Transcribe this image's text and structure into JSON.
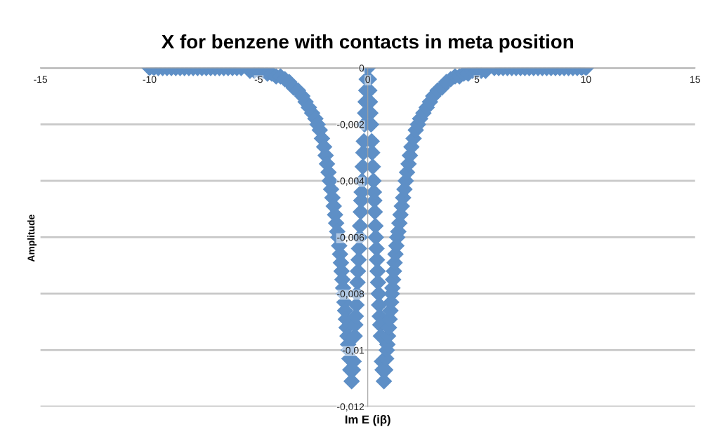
{
  "chart_data": {
    "type": "scatter",
    "title": "X for benzene with contacts in meta position",
    "xlabel": "Im E (iβ)",
    "ylabel": "Amplitude",
    "xlim": [
      -15,
      15
    ],
    "xticks": [
      -15,
      -10,
      -5,
      0,
      5,
      10,
      15
    ],
    "ylim": [
      -0.012,
      0
    ],
    "yticks": [
      {
        "value": -0.012,
        "label": "-0,012"
      },
      {
        "value": -0.01,
        "label": "-0,01"
      },
      {
        "value": -0.008,
        "label": "-0,008"
      },
      {
        "value": -0.006,
        "label": "-0,006"
      },
      {
        "value": -0.004,
        "label": "-0,004"
      },
      {
        "value": -0.002,
        "label": "-0,002"
      },
      0
    ],
    "grid": "y",
    "marker": "diamond",
    "series": [
      {
        "color": "#5e8fc6",
        "x": [
          -10,
          -9.8,
          -9.6,
          -9.4,
          -9.2,
          -9,
          -8.8,
          -8.6,
          -8.4,
          -8.2,
          -8,
          -7.8,
          -7.6,
          -7.4,
          -7.2,
          -7,
          -6.8,
          -6.6,
          -6.4,
          -6.2,
          -6,
          -5.8,
          -5.4,
          -5.2,
          -5,
          -4.8,
          -4.6,
          -4.4,
          -4.2,
          -4,
          -3.8,
          -3.6,
          -3.4,
          -3.2,
          -3,
          -2.85,
          -2.7,
          -2.55,
          -2.4,
          -2.3,
          -2.2,
          -2.1,
          -2,
          -1.93,
          -1.87,
          -1.8,
          -1.74,
          -1.68,
          -1.62,
          -1.56,
          -1.5,
          -1.45,
          -1.4,
          -1.35,
          -1.31,
          -1.27,
          -1.23,
          -1.2,
          -1.16,
          -1.13,
          -1.1,
          -1.07,
          -1.04,
          -1,
          -0.97,
          -0.93,
          -0.9,
          -0.87,
          -0.84,
          -0.8,
          -0.74,
          -0.68,
          -0.65,
          -0.6,
          -0.57,
          -0.55,
          -0.52,
          -0.5,
          -0.47,
          -0.45,
          -0.42,
          -0.4,
          -0.37,
          -0.35,
          -0.32,
          -0.3,
          -0.28,
          -0.26,
          -0.23,
          -0.2,
          -0.18,
          -0.15,
          -0.12,
          -0.1,
          -0.07,
          -0.05,
          0,
          0.05,
          0.07,
          0.1,
          0.12,
          0.15,
          0.18,
          0.2,
          0.23,
          0.26,
          0.28,
          0.3,
          0.32,
          0.35,
          0.37,
          0.4,
          0.42,
          0.45,
          0.47,
          0.5,
          0.52,
          0.55,
          0.57,
          0.6,
          0.65,
          0.68,
          0.74,
          0.8,
          0.84,
          0.87,
          0.9,
          0.93,
          0.97,
          1,
          1.04,
          1.07,
          1.1,
          1.13,
          1.16,
          1.2,
          1.23,
          1.27,
          1.31,
          1.35,
          1.4,
          1.45,
          1.5,
          1.56,
          1.62,
          1.68,
          1.74,
          1.8,
          1.87,
          1.93,
          2,
          2.1,
          2.2,
          2.3,
          2.4,
          2.55,
          2.7,
          2.85,
          3,
          3.2,
          3.4,
          3.6,
          3.8,
          4,
          4.2,
          4.4,
          4.6,
          4.8,
          5,
          5.2,
          5.4,
          5.8,
          6,
          6.2,
          6.4,
          6.6,
          6.8,
          7,
          7.2,
          7.4,
          7.6,
          7.8,
          8,
          8.2,
          8.4,
          8.6,
          8.8,
          9,
          9.2,
          9.4,
          9.6,
          9.8,
          10
        ],
        "values": [
          0,
          0,
          0,
          0,
          0,
          0,
          0,
          0,
          0,
          0,
          0,
          0,
          0,
          0,
          0,
          0,
          0,
          0,
          0,
          0,
          0,
          0,
          -0.0001,
          -0.0001,
          -0.0001,
          -0.0001,
          -0.0002,
          -0.0002,
          -0.0003,
          -0.0003,
          -0.0004,
          -0.0005,
          -0.0007,
          -0.0008,
          -0.001,
          -0.0012,
          -0.0014,
          -0.0016,
          -0.0018,
          -0.002,
          -0.0022,
          -0.0025,
          -0.0028,
          -0.0031,
          -0.0034,
          -0.0037,
          -0.004,
          -0.0043,
          -0.0046,
          -0.0049,
          -0.0052,
          -0.0055,
          -0.0058,
          -0.006,
          -0.0063,
          -0.0066,
          -0.0069,
          -0.0072,
          -0.0075,
          -0.0078,
          -0.008,
          -0.0083,
          -0.0086,
          -0.0089,
          -0.0092,
          -0.0095,
          -0.0098,
          -0.01,
          -0.0103,
          -0.0107,
          -0.0111,
          -0.0107,
          -0.0104,
          -0.0095,
          -0.0091,
          -0.0088,
          -0.0084,
          -0.008,
          -0.0076,
          -0.0072,
          -0.0068,
          -0.0064,
          -0.006,
          -0.0056,
          -0.0051,
          -0.0047,
          -0.0044,
          -0.004,
          -0.0035,
          -0.003,
          -0.0026,
          -0.002,
          -0.0016,
          -0.0012,
          -0.0008,
          -0.0004,
          0,
          -0.0004,
          -0.0008,
          -0.0012,
          -0.0016,
          -0.002,
          -0.0026,
          -0.003,
          -0.0035,
          -0.004,
          -0.0044,
          -0.0047,
          -0.0051,
          -0.0056,
          -0.006,
          -0.0064,
          -0.0068,
          -0.0072,
          -0.0076,
          -0.008,
          -0.0084,
          -0.0088,
          -0.0091,
          -0.0095,
          -0.0104,
          -0.0107,
          -0.0111,
          -0.0107,
          -0.0103,
          -0.01,
          -0.0098,
          -0.0095,
          -0.0092,
          -0.0089,
          -0.0086,
          -0.0083,
          -0.008,
          -0.0078,
          -0.0075,
          -0.0072,
          -0.0069,
          -0.0066,
          -0.0063,
          -0.006,
          -0.0058,
          -0.0055,
          -0.0052,
          -0.0049,
          -0.0046,
          -0.0043,
          -0.004,
          -0.0037,
          -0.0034,
          -0.0031,
          -0.0028,
          -0.0025,
          -0.0022,
          -0.002,
          -0.0018,
          -0.0016,
          -0.0014,
          -0.0012,
          -0.001,
          -0.0008,
          -0.0007,
          -0.0005,
          -0.0004,
          -0.0003,
          -0.0003,
          -0.0002,
          -0.0002,
          -0.0001,
          -0.0001,
          -0.0001,
          -0.0001,
          0,
          0,
          0,
          0,
          0,
          0,
          0,
          0,
          0,
          0,
          0,
          0,
          0,
          0,
          0,
          0,
          0,
          0,
          0,
          0,
          0,
          0
        ]
      }
    ]
  }
}
